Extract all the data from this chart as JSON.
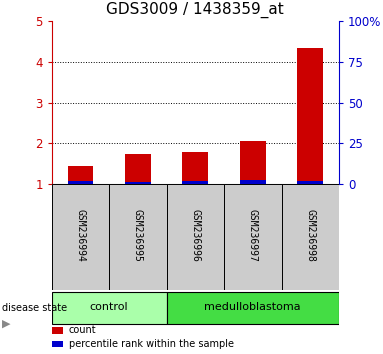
{
  "title": "GDS3009 / 1438359_at",
  "samples": [
    "GSM236994",
    "GSM236995",
    "GSM236996",
    "GSM236997",
    "GSM236998"
  ],
  "red_values": [
    1.45,
    1.75,
    1.78,
    2.05,
    4.35
  ],
  "blue_values": [
    0.07,
    0.06,
    0.07,
    0.09,
    0.08
  ],
  "baseline": 1.0,
  "ylim_left": [
    1,
    5
  ],
  "ylim_right": [
    0,
    100
  ],
  "yticks_left": [
    1,
    2,
    3,
    4,
    5
  ],
  "yticks_right": [
    0,
    25,
    50,
    75,
    100
  ],
  "left_tick_color": "#cc0000",
  "right_tick_color": "#0000cc",
  "bar_width": 0.45,
  "red_color": "#cc0000",
  "blue_color": "#0000cc",
  "groups": [
    {
      "label": "control",
      "indices": [
        0,
        1
      ],
      "color": "#aaffaa"
    },
    {
      "label": "medulloblastoma",
      "indices": [
        2,
        3,
        4
      ],
      "color": "#44dd44"
    }
  ],
  "group_label": "disease state",
  "legend_items": [
    {
      "color": "#cc0000",
      "label": "count"
    },
    {
      "color": "#0000cc",
      "label": "percentile rank within the sample"
    }
  ],
  "sample_box_color": "#cccccc",
  "title_fontsize": 11,
  "tick_fontsize": 8.5,
  "label_fontsize": 7,
  "group_fontsize": 8,
  "grid_yticks": [
    2,
    3,
    4
  ]
}
